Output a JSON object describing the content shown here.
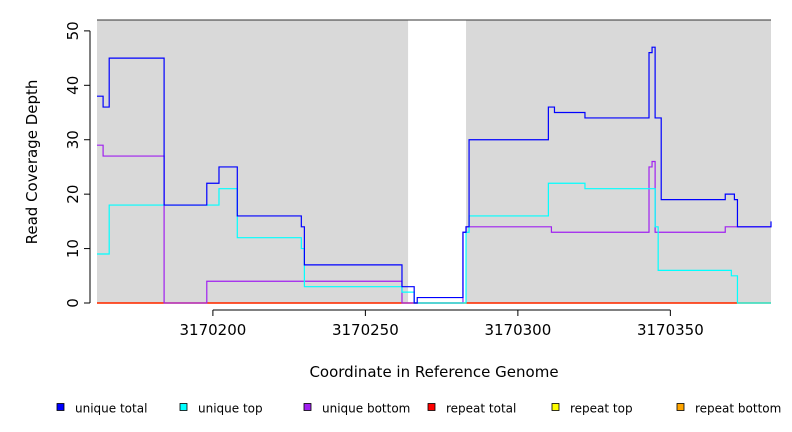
{
  "chart_data": {
    "type": "line",
    "xlabel": "Coordinate in Reference Genome",
    "ylabel": "Read Coverage Depth",
    "xlim": [
      3170162,
      3170383
    ],
    "ylim": [
      0,
      52
    ],
    "x_ticks": [
      3170200,
      3170250,
      3170300,
      3170350
    ],
    "y_ticks": [
      0,
      10,
      20,
      30,
      40,
      50
    ],
    "shaded_regions": [
      [
        3170162,
        3170264
      ],
      [
        3170283,
        3170383
      ]
    ],
    "legend_position": "bottom",
    "series": [
      {
        "name": "unique total",
        "color": "#0000ff",
        "points": [
          [
            3170162,
            38
          ],
          [
            3170164,
            38
          ],
          [
            3170164,
            36
          ],
          [
            3170166,
            36
          ],
          [
            3170166,
            45
          ],
          [
            3170184,
            45
          ],
          [
            3170184,
            18
          ],
          [
            3170198,
            18
          ],
          [
            3170198,
            22
          ],
          [
            3170202,
            22
          ],
          [
            3170202,
            25
          ],
          [
            3170208,
            25
          ],
          [
            3170208,
            16
          ],
          [
            3170229,
            16
          ],
          [
            3170229,
            14
          ],
          [
            3170230,
            14
          ],
          [
            3170230,
            7
          ],
          [
            3170262,
            7
          ],
          [
            3170262,
            3
          ],
          [
            3170266,
            3
          ],
          [
            3170266,
            0
          ],
          [
            3170267,
            0
          ],
          [
            3170267,
            1
          ],
          [
            3170282,
            1
          ],
          [
            3170282,
            13
          ],
          [
            3170283,
            13
          ],
          [
            3170283,
            14
          ],
          [
            3170284,
            14
          ],
          [
            3170284,
            30
          ],
          [
            3170310,
            30
          ],
          [
            3170310,
            36
          ],
          [
            3170312,
            36
          ],
          [
            3170312,
            35
          ],
          [
            3170322,
            35
          ],
          [
            3170322,
            34
          ],
          [
            3170343,
            34
          ],
          [
            3170343,
            46
          ],
          [
            3170344,
            46
          ],
          [
            3170344,
            47
          ],
          [
            3170345,
            47
          ],
          [
            3170345,
            34
          ],
          [
            3170347,
            34
          ],
          [
            3170347,
            19
          ],
          [
            3170368,
            19
          ],
          [
            3170368,
            20
          ],
          [
            3170371,
            20
          ],
          [
            3170371,
            19
          ],
          [
            3170372,
            19
          ],
          [
            3170372,
            14
          ],
          [
            3170383,
            14
          ],
          [
            3170383,
            15
          ]
        ]
      },
      {
        "name": "unique top",
        "color": "#00ffff",
        "points": [
          [
            3170162,
            9
          ],
          [
            3170166,
            9
          ],
          [
            3170166,
            18
          ],
          [
            3170202,
            18
          ],
          [
            3170202,
            21
          ],
          [
            3170208,
            21
          ],
          [
            3170208,
            12
          ],
          [
            3170229,
            12
          ],
          [
            3170229,
            10
          ],
          [
            3170230,
            10
          ],
          [
            3170230,
            3
          ],
          [
            3170262,
            3
          ],
          [
            3170262,
            2
          ],
          [
            3170266,
            2
          ],
          [
            3170266,
            0
          ],
          [
            3170283,
            0
          ],
          [
            3170283,
            13
          ],
          [
            3170284,
            13
          ],
          [
            3170284,
            16
          ],
          [
            3170310,
            16
          ],
          [
            3170310,
            22
          ],
          [
            3170322,
            22
          ],
          [
            3170322,
            21
          ],
          [
            3170345,
            21
          ],
          [
            3170345,
            14
          ],
          [
            3170346,
            14
          ],
          [
            3170346,
            6
          ],
          [
            3170370,
            6
          ],
          [
            3170370,
            5
          ],
          [
            3170372,
            5
          ],
          [
            3170372,
            0
          ],
          [
            3170383,
            0
          ]
        ]
      },
      {
        "name": "unique bottom",
        "color": "#a020f0",
        "points": [
          [
            3170162,
            29
          ],
          [
            3170164,
            29
          ],
          [
            3170164,
            27
          ],
          [
            3170184,
            27
          ],
          [
            3170184,
            0
          ],
          [
            3170198,
            0
          ],
          [
            3170198,
            4
          ],
          [
            3170262,
            4
          ],
          [
            3170262,
            0
          ],
          [
            3170282,
            0
          ],
          [
            3170282,
            13
          ],
          [
            3170283,
            13
          ],
          [
            3170283,
            14
          ],
          [
            3170311,
            14
          ],
          [
            3170311,
            13
          ],
          [
            3170343,
            13
          ],
          [
            3170343,
            25
          ],
          [
            3170344,
            25
          ],
          [
            3170344,
            26
          ],
          [
            3170345,
            26
          ],
          [
            3170345,
            13
          ],
          [
            3170368,
            13
          ],
          [
            3170368,
            14
          ],
          [
            3170383,
            14
          ]
        ]
      },
      {
        "name": "repeat total",
        "color": "#ff0000",
        "points": [
          [
            3170162,
            0
          ],
          [
            3170383,
            0
          ]
        ]
      },
      {
        "name": "repeat top",
        "color": "#ffff00",
        "points": [
          [
            3170162,
            0
          ],
          [
            3170383,
            0
          ]
        ]
      },
      {
        "name": "repeat bottom",
        "color": "#ffa500",
        "points": [
          [
            3170162,
            0
          ],
          [
            3170383,
            0
          ]
        ]
      }
    ]
  }
}
